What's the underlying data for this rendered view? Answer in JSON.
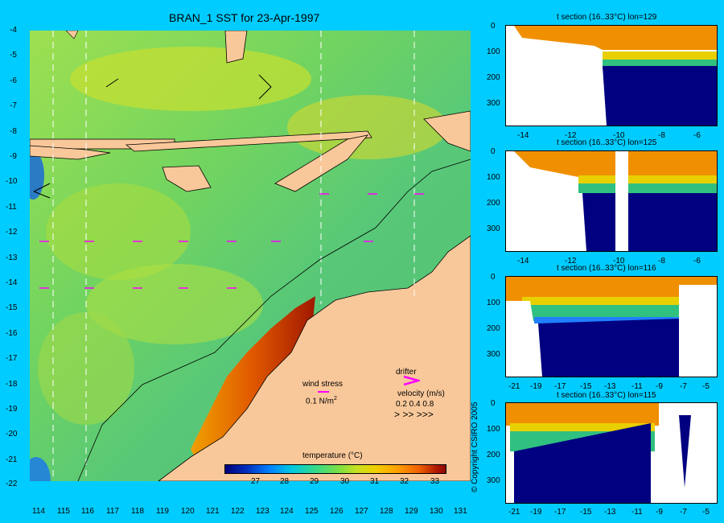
{
  "title": "BRAN_1 SST for 23-Apr-1997",
  "colors": {
    "background": "#00ccff",
    "land": "#f9c89a",
    "arrow": "#ff00ff",
    "deep": "#000080",
    "warm": "#f08000"
  },
  "map": {
    "x_ticks": [
      "114",
      "115",
      "116",
      "117",
      "118",
      "119",
      "120",
      "121",
      "122",
      "123",
      "124",
      "125",
      "126",
      "127",
      "128",
      "129",
      "130",
      "131"
    ],
    "y_ticks": [
      "-4",
      "-5",
      "-6",
      "-7",
      "-8",
      "-9",
      "-10",
      "-11",
      "-12",
      "-13",
      "-14",
      "-15",
      "-16",
      "-17",
      "-18",
      "-19",
      "-20",
      "-21",
      "-22"
    ]
  },
  "legend": {
    "wind_label": "wind stress",
    "wind_scale": "0.1 N/m",
    "wind_sup": "2",
    "drifter_label": "drifter",
    "velocity_label": "velocity (m/s)",
    "velocity_values": "0.2 0.4 0.8",
    "velocity_arrows": ">     >>      >>>",
    "drifter_icon": "arrow-icon"
  },
  "colorbar": {
    "label": "temperature (°C)",
    "ticks": [
      "27",
      "28",
      "29",
      "30",
      "31",
      "32",
      "33"
    ]
  },
  "sections": [
    {
      "title": "t section (16..33°C) lon=129",
      "x_ticks": [
        "-14",
        "-12",
        "-10",
        "-8",
        "-6"
      ],
      "y_ticks": [
        "0",
        "100",
        "200",
        "300"
      ]
    },
    {
      "title": "t section (16..33°C) lon=125",
      "x_ticks": [
        "-14",
        "-12",
        "-10",
        "-8",
        "-6"
      ],
      "y_ticks": [
        "0",
        "100",
        "200",
        "300"
      ]
    },
    {
      "title": "t section (16..33°C) lon=116",
      "x_ticks": [
        "-21",
        "-19",
        "-17",
        "-15",
        "-13",
        "-11",
        "-9",
        "-7",
        "-5"
      ],
      "y_ticks": [
        "0",
        "100",
        "200",
        "300"
      ]
    },
    {
      "title": "t section (16..33°C) lon=115",
      "x_ticks": [
        "-21",
        "-19",
        "-17",
        "-15",
        "-13",
        "-11",
        "-9",
        "-7",
        "-5"
      ],
      "y_ticks": [
        "0",
        "100",
        "200",
        "300"
      ]
    }
  ],
  "copyright": "© Copyright CSIRO 2005"
}
